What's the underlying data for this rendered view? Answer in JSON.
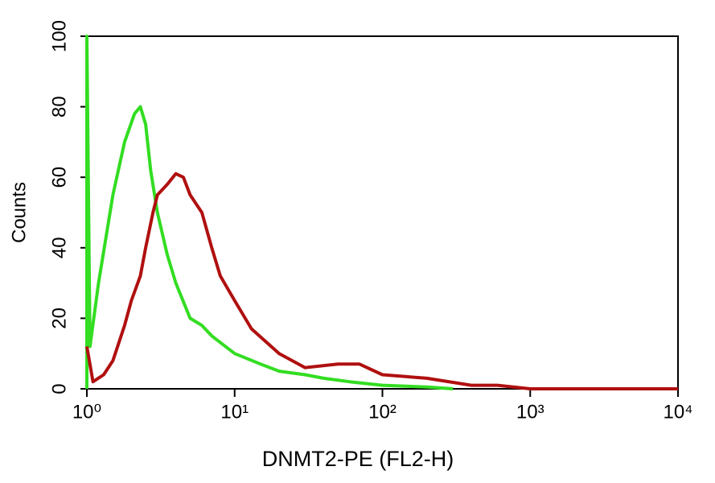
{
  "chart_data": {
    "type": "line",
    "xscale": "log",
    "x_label": "DNMT2-PE (FL2-H)",
    "y_label": "Counts",
    "xlim": [
      1,
      10000
    ],
    "xticks": [
      {
        "value": 1,
        "label": "10⁰"
      },
      {
        "value": 10,
        "label": "10¹"
      },
      {
        "value": 100,
        "label": "10²"
      },
      {
        "value": 1000,
        "label": "10³"
      },
      {
        "value": 10000,
        "label": "10⁴"
      }
    ],
    "ylim": [
      0,
      100
    ],
    "yticks": [
      0,
      20,
      40,
      60,
      80,
      100
    ],
    "series": [
      {
        "color": "#33dd22",
        "x": [
          1,
          1,
          1.05,
          1.2,
          1.5,
          1.8,
          2.1,
          2.3,
          2.5,
          2.7,
          3,
          3.5,
          4,
          5,
          6,
          7,
          10,
          15,
          20,
          30,
          40,
          60,
          100,
          200,
          300
        ],
        "values": [
          0,
          100,
          12,
          30,
          55,
          70,
          78,
          80,
          75,
          62,
          50,
          38,
          30,
          20,
          18,
          15,
          10,
          7,
          5,
          4,
          3,
          2,
          1,
          0.5,
          0
        ]
      },
      {
        "color": "#b01010",
        "x": [
          1,
          1.1,
          1.3,
          1.5,
          1.8,
          2,
          2.3,
          2.5,
          2.8,
          3,
          3.5,
          4,
          4.5,
          5,
          6,
          7,
          8,
          10,
          13,
          20,
          30,
          50,
          70,
          100,
          200,
          400,
          600,
          1000,
          10000
        ],
        "values": [
          12,
          2,
          4,
          8,
          18,
          25,
          32,
          40,
          50,
          55,
          58,
          61,
          60,
          55,
          50,
          40,
          32,
          25,
          17,
          10,
          6,
          7,
          7,
          4,
          3,
          1,
          1,
          0,
          0
        ]
      }
    ]
  }
}
